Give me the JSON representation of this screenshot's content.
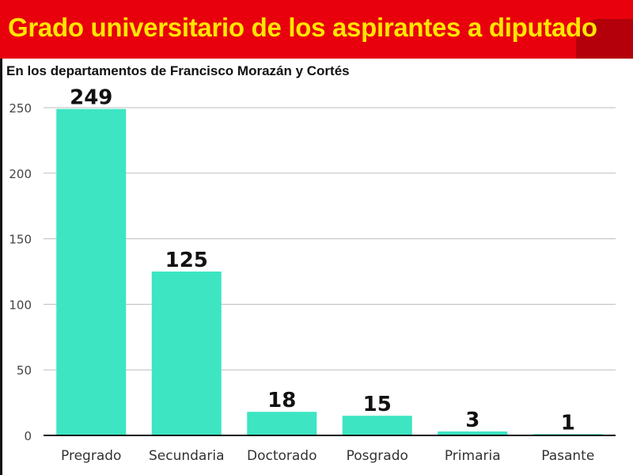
{
  "header": {
    "title": "Grado universitario de los aspirantes a diputado",
    "subtitle": "En los departamentos de Francisco Morazán y Cortés"
  },
  "colors": {
    "header_bg": "#e8000d",
    "title_text": "#ffe600",
    "bar": "#3de5c3"
  },
  "chart_data": {
    "type": "bar",
    "title": "Grado universitario de los aspirantes a diputado",
    "subtitle": "En los departamentos de Francisco Morazán y Cortés",
    "categories": [
      "Pregrado",
      "Secundaria",
      "Doctorado",
      "Posgrado",
      "Primaria",
      "Pasante"
    ],
    "values": [
      249,
      125,
      18,
      15,
      3,
      1
    ],
    "data_labels": [
      "249",
      "125",
      "18",
      "15",
      "3",
      "1"
    ],
    "yticks": [
      0,
      50,
      100,
      150,
      200,
      250
    ],
    "ylim": [
      0,
      250
    ],
    "grid": true,
    "legend": "none"
  }
}
